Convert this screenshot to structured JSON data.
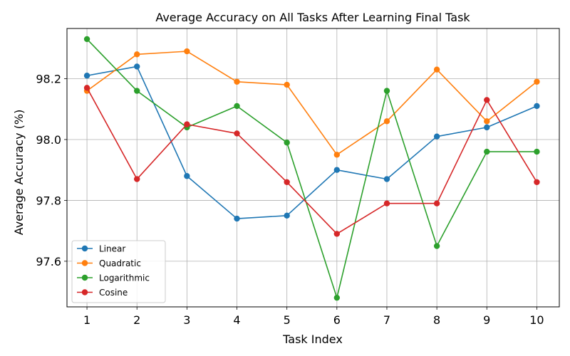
{
  "chart_data": {
    "type": "line",
    "title": "Average Accuracy on All Tasks After Learning Final Task",
    "xlabel": "Task Index",
    "ylabel": "Average Accuracy (%)",
    "x": [
      1,
      2,
      3,
      4,
      5,
      6,
      7,
      8,
      9,
      10
    ],
    "x_ticks": [
      "1",
      "2",
      "3",
      "4",
      "5",
      "6",
      "7",
      "8",
      "9",
      "10"
    ],
    "y_ticks": [
      97.6,
      97.8,
      98.0,
      98.2
    ],
    "y_tick_labels": [
      "97.6",
      "97.8",
      "98.0",
      "98.2"
    ],
    "xlim": [
      0.6,
      10.45
    ],
    "ylim": [
      97.45,
      98.365
    ],
    "grid": true,
    "legend_position": "bottom-left",
    "series": [
      {
        "name": "Linear",
        "color": "#1f77b4",
        "values": [
          98.21,
          98.24,
          97.88,
          97.74,
          97.75,
          97.9,
          97.87,
          98.01,
          98.04,
          98.11
        ]
      },
      {
        "name": "Quadratic",
        "color": "#ff7f0e",
        "values": [
          98.16,
          98.28,
          98.29,
          98.19,
          98.18,
          97.95,
          98.06,
          98.23,
          98.06,
          98.19
        ]
      },
      {
        "name": "Logarithmic",
        "color": "#2ca02c",
        "values": [
          98.33,
          98.16,
          98.04,
          98.11,
          97.99,
          97.48,
          98.16,
          97.65,
          97.96,
          97.96
        ]
      },
      {
        "name": "Cosine",
        "color": "#d62728",
        "values": [
          98.17,
          97.87,
          98.05,
          98.02,
          97.86,
          97.69,
          97.79,
          97.79,
          98.13,
          97.86
        ]
      }
    ]
  }
}
